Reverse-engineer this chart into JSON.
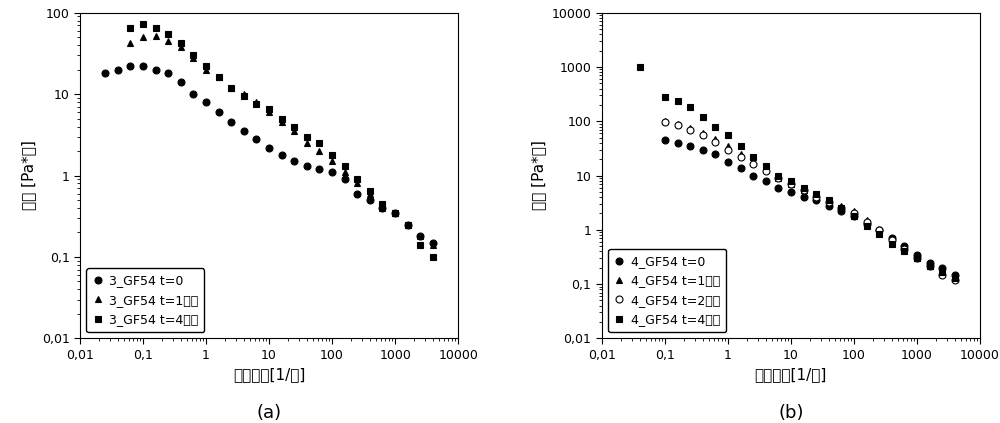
{
  "panel_a": {
    "title": "(a)",
    "xlabel": "剪切速率[1/秒]",
    "ylabel": "粘度 [Pa*秒]",
    "xlim": [
      0.01,
      10000
    ],
    "ylim": [
      0.01,
      100
    ],
    "series": [
      {
        "label": "3_GF54 t=0",
        "marker": "o",
        "filled": true,
        "x": [
          0.025,
          0.04,
          0.063,
          0.1,
          0.16,
          0.25,
          0.4,
          0.63,
          1.0,
          1.6,
          2.5,
          4.0,
          6.3,
          10,
          16,
          25,
          40,
          63,
          100,
          160,
          250,
          400,
          630,
          1000,
          1600,
          2500,
          4000
        ],
        "y": [
          18,
          20,
          22,
          22,
          20,
          18,
          14,
          10,
          8.0,
          6.0,
          4.5,
          3.5,
          2.8,
          2.2,
          1.8,
          1.5,
          1.3,
          1.2,
          1.1,
          0.9,
          0.6,
          0.5,
          0.4,
          0.35,
          0.25,
          0.18,
          0.15
        ]
      },
      {
        "label": "3_GF54 t=1小时",
        "marker": "^",
        "filled": true,
        "x": [
          0.063,
          0.1,
          0.16,
          0.25,
          0.4,
          0.63,
          1.0,
          1.6,
          2.5,
          4.0,
          6.3,
          10,
          16,
          25,
          40,
          63,
          100,
          160,
          250,
          400,
          630,
          1000,
          1600,
          2500,
          4000
        ],
        "y": [
          42,
          50,
          52,
          45,
          38,
          28,
          20,
          16,
          12,
          10,
          8.0,
          6.0,
          4.5,
          3.5,
          2.5,
          2.0,
          1.5,
          1.1,
          0.8,
          0.6,
          0.4,
          0.35,
          0.25,
          0.18,
          0.14
        ]
      },
      {
        "label": "3_GF54 t=4小时",
        "marker": "s",
        "filled": true,
        "x": [
          0.063,
          0.1,
          0.16,
          0.25,
          0.4,
          0.63,
          1.0,
          1.6,
          2.5,
          4.0,
          6.3,
          10,
          16,
          25,
          40,
          63,
          100,
          160,
          250,
          400,
          630,
          1000,
          1600,
          2500,
          4000
        ],
        "y": [
          65,
          72,
          65,
          55,
          42,
          30,
          22,
          16,
          12,
          9.5,
          7.5,
          6.5,
          5.0,
          4.0,
          3.0,
          2.5,
          1.8,
          1.3,
          0.9,
          0.65,
          0.45,
          0.35,
          0.25,
          0.14,
          0.1
        ]
      }
    ]
  },
  "panel_b": {
    "title": "(b)",
    "xlabel": "剪切速率[1/秒]",
    "ylabel": "粘度 [Pa*秒]",
    "xlim": [
      0.01,
      10000
    ],
    "ylim": [
      0.01,
      10000
    ],
    "series": [
      {
        "label": "4_GF54 t=0",
        "marker": "o",
        "filled": true,
        "x": [
          0.1,
          0.16,
          0.25,
          0.4,
          0.63,
          1.0,
          1.6,
          2.5,
          4.0,
          6.3,
          10,
          16,
          25,
          40,
          63,
          100,
          160,
          250,
          400,
          630,
          1000,
          1600,
          2500,
          4000
        ],
        "y": [
          45,
          40,
          35,
          30,
          25,
          18,
          14,
          10,
          8.0,
          6.0,
          5.0,
          4.0,
          3.5,
          2.8,
          2.2,
          1.8,
          1.3,
          1.0,
          0.7,
          0.5,
          0.35,
          0.25,
          0.2,
          0.15
        ]
      },
      {
        "label": "4_GF54 t=1小时",
        "marker": "^",
        "filled": true,
        "x": [
          0.1,
          0.16,
          0.25,
          0.4,
          0.63,
          1.0,
          1.6,
          2.5,
          4.0,
          6.3,
          10,
          16,
          25,
          40,
          63,
          100,
          160,
          250,
          400,
          630,
          1000,
          1600,
          2500,
          4000
        ],
        "y": [
          100,
          90,
          75,
          60,
          48,
          35,
          25,
          18,
          13,
          9.0,
          7.0,
          5.5,
          4.5,
          3.5,
          2.8,
          2.2,
          1.5,
          1.0,
          0.7,
          0.45,
          0.3,
          0.22,
          0.17,
          0.13
        ]
      },
      {
        "label": "4_GF54 t=2小时",
        "marker": "o",
        "filled": false,
        "x": [
          0.1,
          0.16,
          0.25,
          0.4,
          0.63,
          1.0,
          1.6,
          2.5,
          4.0,
          6.3,
          10,
          16,
          25,
          40,
          63,
          100,
          160,
          250,
          400,
          630,
          1000,
          1600,
          2500,
          4000
        ],
        "y": [
          95,
          85,
          68,
          55,
          42,
          30,
          22,
          16,
          12,
          9.0,
          7.0,
          5.5,
          4.0,
          3.2,
          2.5,
          2.0,
          1.4,
          1.0,
          0.65,
          0.45,
          0.3,
          0.22,
          0.15,
          0.12
        ]
      },
      {
        "label": "4_GF54 t=4小时",
        "marker": "s",
        "filled": true,
        "x": [
          0.04,
          0.1,
          0.16,
          0.25,
          0.4,
          0.63,
          1.0,
          1.6,
          2.5,
          4.0,
          6.3,
          10,
          16,
          25,
          40,
          63,
          100,
          160,
          250,
          400,
          630,
          1000,
          1600,
          2500,
          4000
        ],
        "y": [
          1000,
          280,
          240,
          180,
          120,
          80,
          55,
          35,
          22,
          15,
          10,
          8.0,
          6.0,
          4.5,
          3.5,
          2.5,
          1.8,
          1.2,
          0.85,
          0.55,
          0.4,
          0.3,
          0.22,
          0.17,
          0.13
        ]
      }
    ]
  },
  "xticks_a": [
    0.01,
    0.1,
    1,
    10,
    100,
    1000,
    10000
  ],
  "xtick_labels_a": [
    "0,01",
    "0,1",
    "1",
    "10",
    "100",
    "1000",
    "10000"
  ],
  "yticks_a": [
    0.01,
    0.1,
    1,
    10,
    100
  ],
  "ytick_labels_a": [
    "0,01",
    "0,1",
    "1",
    "10",
    "100"
  ],
  "xticks_b": [
    0.01,
    0.1,
    1,
    10,
    100,
    1000,
    10000
  ],
  "xtick_labels_b": [
    "0,01",
    "0,1",
    "1",
    "10",
    "100",
    "1000",
    "10000"
  ],
  "yticks_b": [
    0.01,
    0.1,
    1,
    10,
    100,
    1000,
    10000
  ],
  "ytick_labels_b": [
    "0,01",
    "0,1",
    "1",
    "10",
    "100",
    "1000",
    "10000"
  ],
  "font_size_label": 11,
  "font_size_tick": 9,
  "font_size_legend": 9,
  "font_size_panel_label": 13
}
